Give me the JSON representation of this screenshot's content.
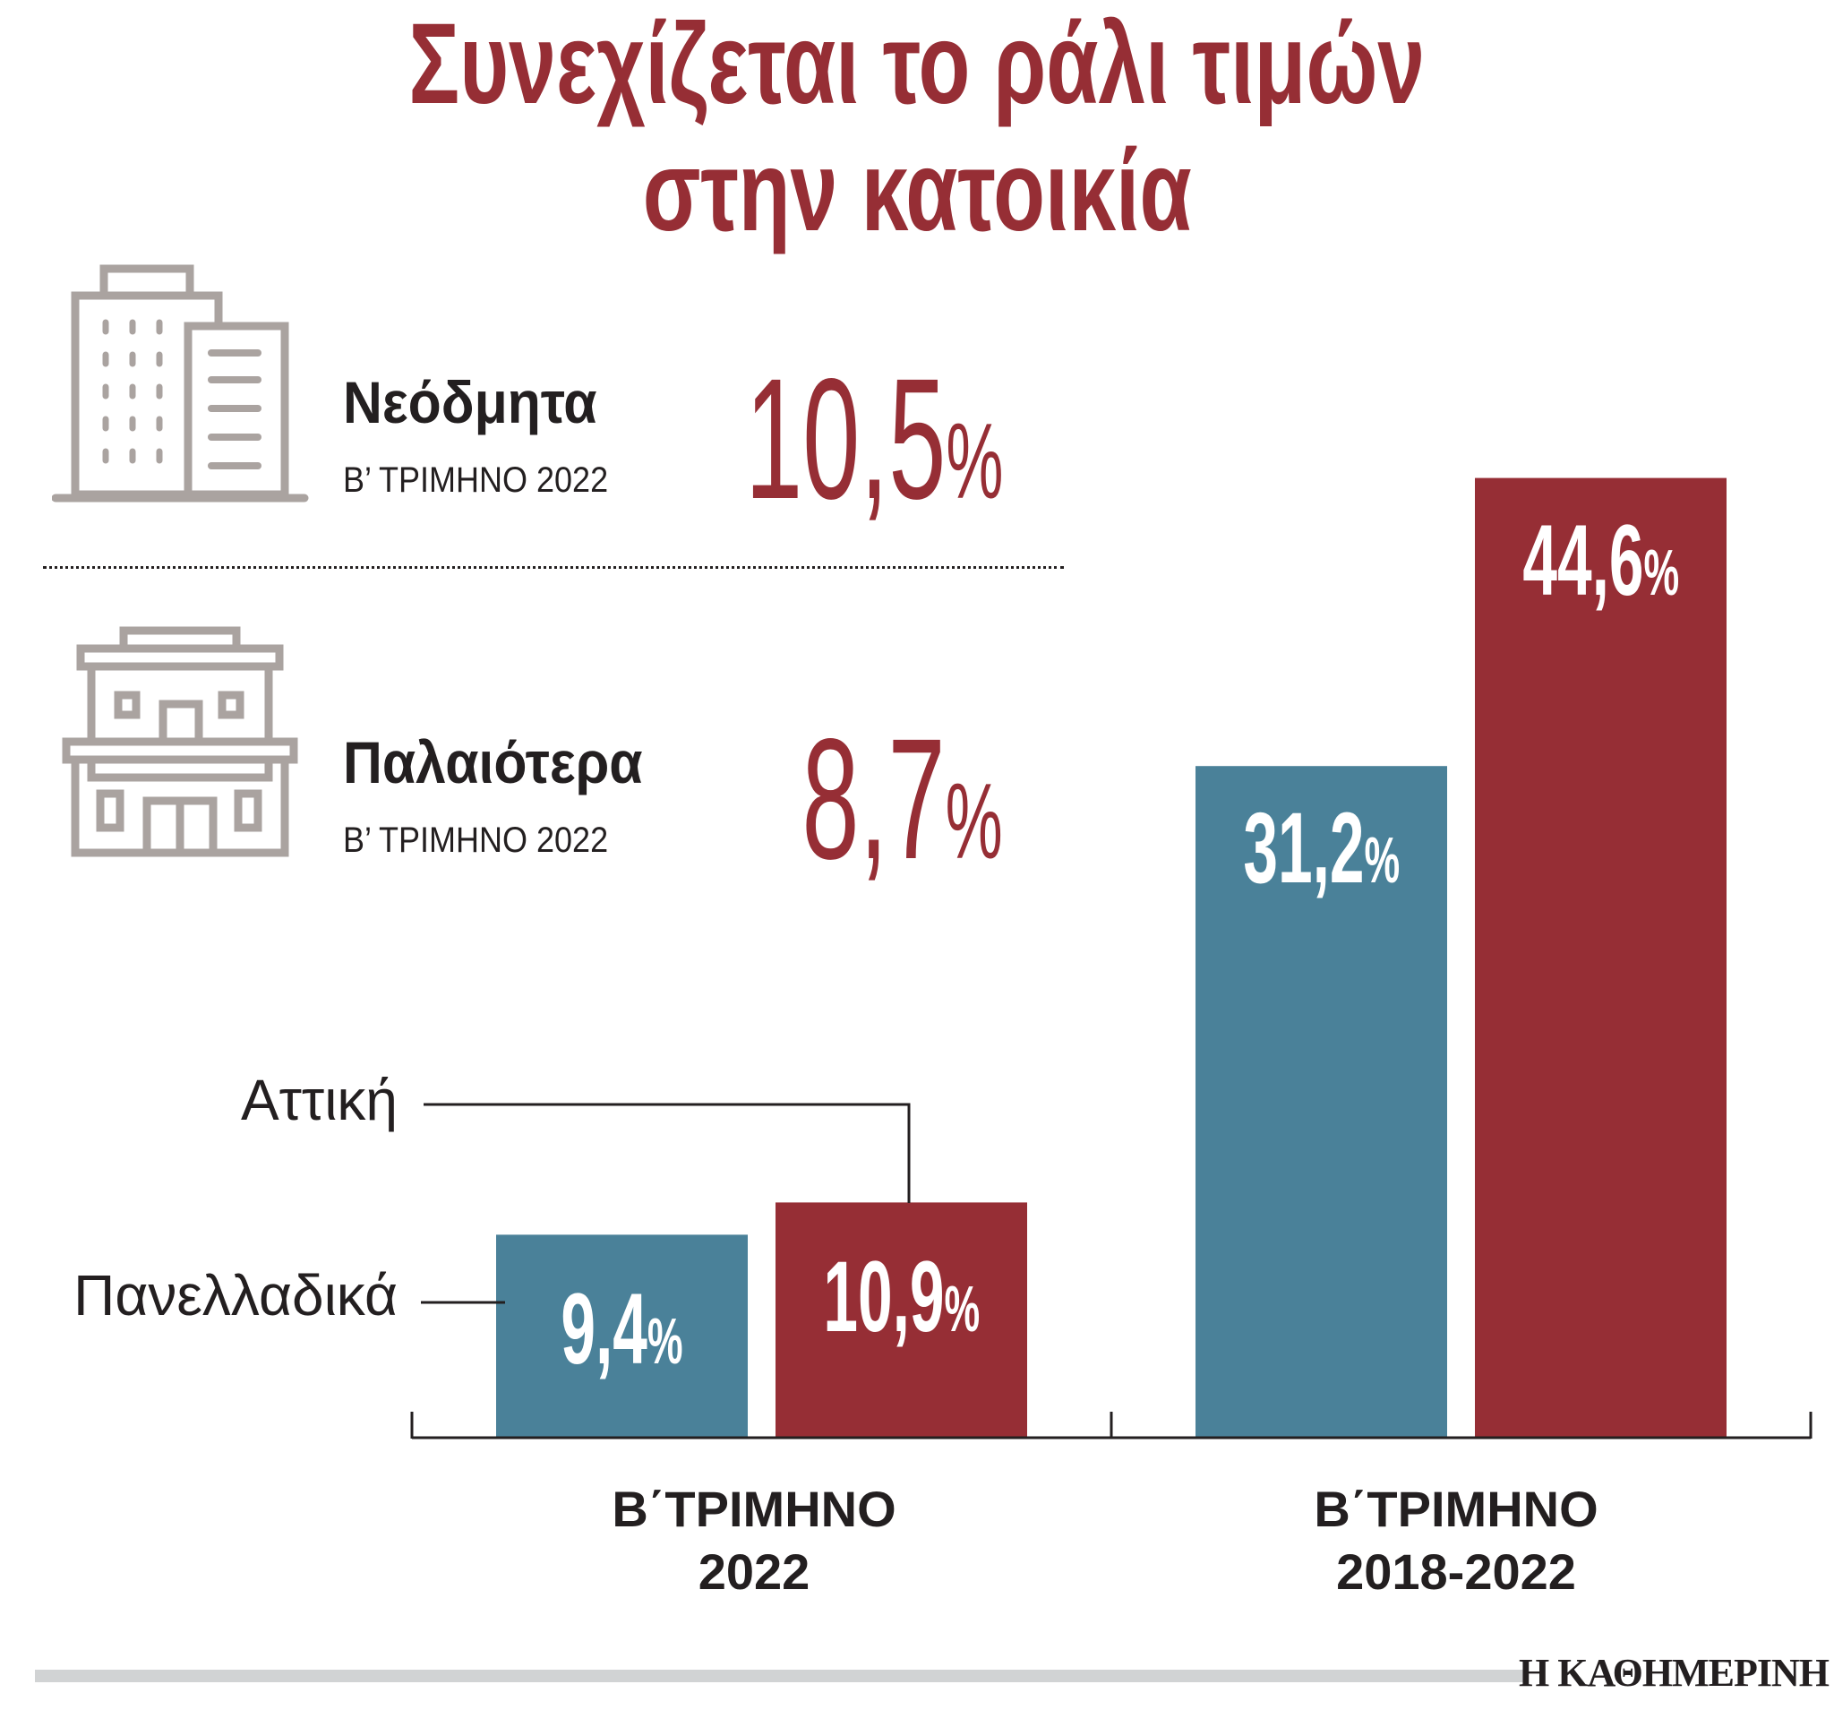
{
  "title": {
    "line1": "Συνεχίζεται το ράλι τιμών",
    "line2": "στην κατοικία"
  },
  "highlights": [
    {
      "icon": "modern-building-icon",
      "label": "Νεόδμητα",
      "period": "Β’ ΤΡΙΜΗΝΟ 2022",
      "value": "10,5",
      "unit": "%"
    },
    {
      "icon": "old-building-icon",
      "label": "Παλαιότερα",
      "period": "Β’ ΤΡΙΜΗΝΟ 2022",
      "value": "8,7",
      "unit": "%"
    }
  ],
  "colors": {
    "accent": "#962e35",
    "blue": "#4a8199",
    "icon_gray": "#aaa3a0",
    "text": "#231f20",
    "footer_bar": "#d1d3d4"
  },
  "chart_data": {
    "type": "bar",
    "categories": [
      {
        "line1": "Β΄ΤΡΙΜΗΝΟ",
        "line2": "2022"
      },
      {
        "line1": "Β΄ΤΡΙΜΗΝΟ",
        "line2": "2018-2022"
      }
    ],
    "series": [
      {
        "name": "Πανελλαδικά",
        "color": "#4a8199",
        "values": [
          9.4,
          31.2
        ],
        "labels": [
          "9,4",
          "31,2"
        ]
      },
      {
        "name": "Αττική",
        "color": "#962e35",
        "values": [
          10.9,
          44.6
        ],
        "labels": [
          "10,9",
          "44,6"
        ]
      }
    ],
    "unit": "%",
    "ylim": [
      0,
      46
    ],
    "grid": false,
    "legend": "callouts-left"
  },
  "footer": {
    "logo": "Η ΚΑΘΗΜΕΡΙΝΗ"
  }
}
